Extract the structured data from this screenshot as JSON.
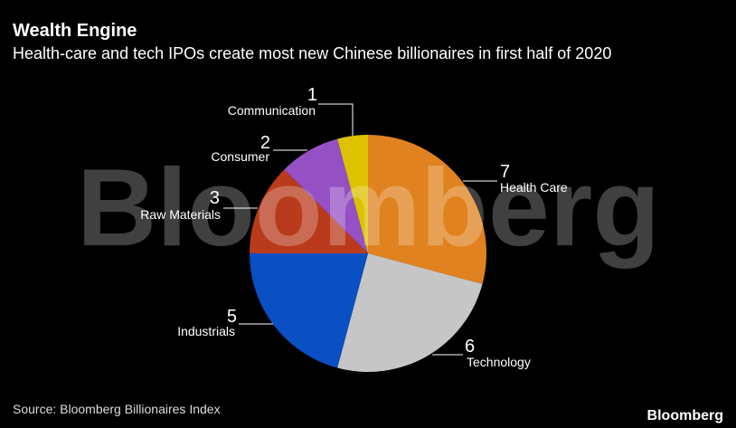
{
  "chart_data": {
    "type": "pie",
    "title": "Wealth Engine",
    "subtitle": "Health-care and tech IPOs create most new Chinese billionaires in first half of 2020",
    "categories": [
      "Health Care",
      "Technology",
      "Industrials",
      "Raw Materials",
      "Consumer",
      "Communication"
    ],
    "values": [
      7,
      6,
      5,
      3,
      2,
      1
    ],
    "colors": [
      "#e0821f",
      "#c6c6c6",
      "#0a4fc4",
      "#b93b1c",
      "#9550c4",
      "#dcc200"
    ],
    "source": "Source: Bloomberg Billionaires Index",
    "watermark": "Bloomberg",
    "logo": "Bloomberg"
  }
}
